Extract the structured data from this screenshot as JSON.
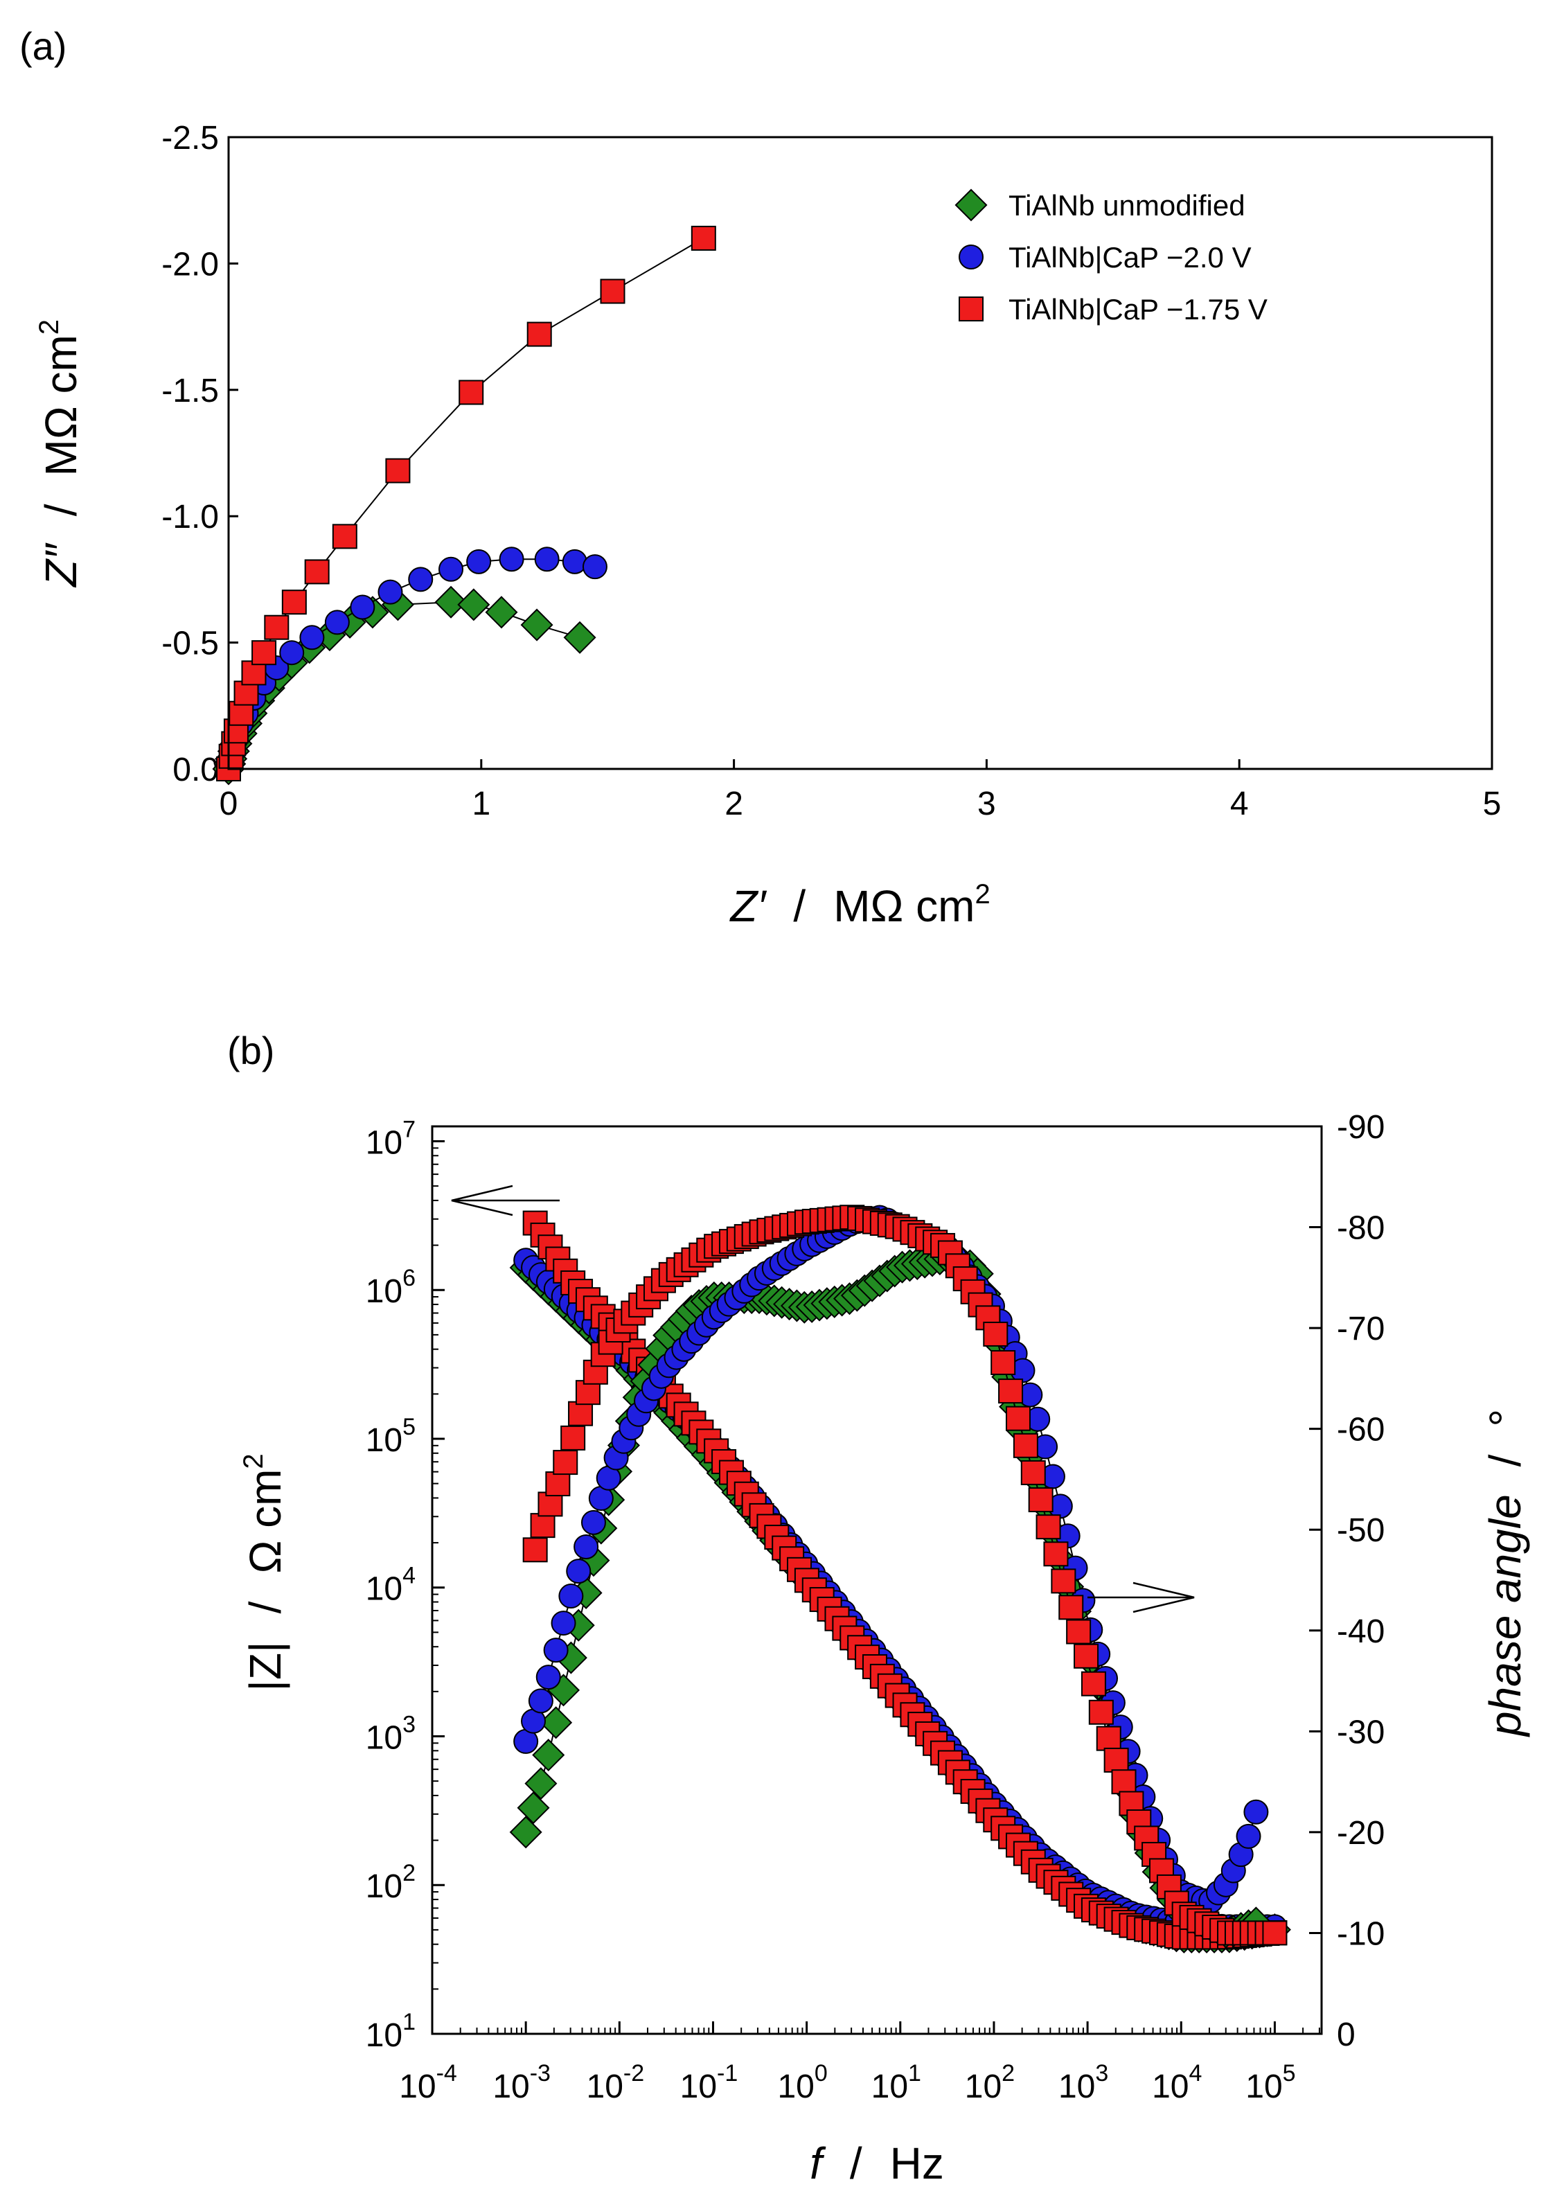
{
  "chart_data": [
    {
      "panel": "(a)",
      "type": "scatter",
      "x_title_sym": "Z′",
      "x_title_unit": "MΩ cm",
      "x_title_sup": "2",
      "y_title_sym": "Z″",
      "y_title_unit": "MΩ cm",
      "y_title_sup": "2",
      "separator": "/",
      "xlim": [
        0,
        5
      ],
      "ylim": [
        0,
        -2.5
      ],
      "x_ticks": [
        "0",
        "1",
        "2",
        "3",
        "4",
        "5"
      ],
      "y_ticks": [
        "0.0",
        "-0.5",
        "-1.0",
        "-1.5",
        "-2.0",
        "-2.5"
      ],
      "legend_position": "top-right",
      "series": [
        {
          "name": "TiAlNb unmodified",
          "marker": "diamond",
          "color": "#228b22",
          "x": [
            0.0,
            0.005,
            0.01,
            0.02,
            0.03,
            0.05,
            0.07,
            0.09,
            0.12,
            0.16,
            0.2,
            0.25,
            0.32,
            0.4,
            0.48,
            0.57,
            0.67,
            0.88,
            0.97,
            1.08,
            1.22,
            1.39
          ],
          "y": [
            0.0,
            -0.02,
            -0.04,
            -0.07,
            -0.1,
            -0.14,
            -0.18,
            -0.22,
            -0.27,
            -0.32,
            -0.37,
            -0.42,
            -0.48,
            -0.53,
            -0.58,
            -0.62,
            -0.65,
            -0.66,
            -0.65,
            -0.62,
            -0.57,
            -0.52
          ]
        },
        {
          "name": "TiAlNb|CaP −2.0 V",
          "marker": "circle",
          "color": "#1f1fe0",
          "x": [
            0.0,
            0.01,
            0.02,
            0.03,
            0.05,
            0.07,
            0.1,
            0.14,
            0.19,
            0.25,
            0.33,
            0.43,
            0.53,
            0.64,
            0.76,
            0.88,
            0.99,
            1.12,
            1.26,
            1.37,
            1.45
          ],
          "y": [
            0.0,
            -0.04,
            -0.08,
            -0.12,
            -0.18,
            -0.22,
            -0.28,
            -0.34,
            -0.4,
            -0.46,
            -0.52,
            -0.58,
            -0.64,
            -0.7,
            -0.75,
            -0.79,
            -0.82,
            -0.83,
            -0.83,
            -0.82,
            -0.8
          ]
        },
        {
          "name": "TiAlNb|CaP −1.75 V",
          "marker": "square",
          "color": "#ee1c1c",
          "x": [
            0.0,
            0.01,
            0.02,
            0.03,
            0.05,
            0.07,
            0.1,
            0.14,
            0.19,
            0.26,
            0.35,
            0.46,
            0.67,
            0.96,
            1.23,
            1.52,
            1.88
          ],
          "y": [
            0.0,
            -0.05,
            -0.1,
            -0.15,
            -0.22,
            -0.3,
            -0.38,
            -0.46,
            -0.56,
            -0.66,
            -0.78,
            -0.92,
            -1.18,
            -1.49,
            -1.72,
            -1.89,
            -2.1
          ]
        }
      ]
    },
    {
      "panel": "(b)",
      "type": "scatter",
      "x_title_sym": "f",
      "x_title_unit": "Hz",
      "separator": "/",
      "y_title_left": "|Z|",
      "y_title_left_unit": "Ω cm",
      "y_title_left_sup": "2",
      "y_title_right": "phase angle",
      "y_title_right_unit": "°",
      "x_scale": "log",
      "xlim": [
        -4,
        5.5
      ],
      "x_ticks_base": "10",
      "x_ticks_exp": [
        "-4",
        "-3",
        "-2",
        "-1",
        "0",
        "1",
        "2",
        "3",
        "4",
        "5"
      ],
      "y_left_scale": "log",
      "y_left_lim": [
        1,
        7.1
      ],
      "y_left_ticks_base": "10",
      "y_left_ticks_exp": [
        "1",
        "2",
        "3",
        "4",
        "5",
        "6",
        "7"
      ],
      "y_right_lim": [
        0,
        -90
      ],
      "y_right_ticks": [
        "0",
        "-10",
        "-20",
        "-30",
        "-40",
        "-50",
        "-60",
        "-70",
        "-80",
        "-90"
      ],
      "arrows": [
        "|Z| series read on left axis",
        "phase series read on right axis"
      ],
      "modulus_series": [
        {
          "name": "TiAlNb unmodified",
          "marker": "diamond",
          "color": "#228b22",
          "log_f_start": -3,
          "log_f_end": 5,
          "points": 100,
          "log_z_knots": [
            [
              -3,
              6.15
            ],
            [
              -2,
              5.55
            ],
            [
              -1,
              4.85
            ],
            [
              0,
              4.05
            ],
            [
              1,
              3.25
            ],
            [
              2,
              2.45
            ],
            [
              2.5,
              2.1
            ],
            [
              3,
              1.85
            ],
            [
              3.5,
              1.73
            ],
            [
              4,
              1.65
            ],
            [
              4.5,
              1.65
            ],
            [
              5,
              1.7
            ]
          ]
        },
        {
          "name": "TiAlNb|CaP −2.0 V",
          "marker": "circle",
          "color": "#1f1fe0",
          "log_f_start": -3,
          "log_f_end": 5,
          "points": 100,
          "log_z_knots": [
            [
              -3,
              6.2
            ],
            [
              -2,
              5.6
            ],
            [
              -1,
              4.95
            ],
            [
              0,
              4.15
            ],
            [
              1,
              3.35
            ],
            [
              2,
              2.55
            ],
            [
              2.5,
              2.2
            ],
            [
              3,
              1.95
            ],
            [
              3.5,
              1.8
            ],
            [
              4,
              1.74
            ],
            [
              4.5,
              1.72
            ],
            [
              5,
              1.72
            ]
          ]
        },
        {
          "name": "TiAlNb|CaP −1.75 V",
          "marker": "square",
          "color": "#ee1c1c",
          "log_f_start": -2.9,
          "log_f_end": 5,
          "points": 99,
          "log_z_knots": [
            [
              -2.9,
              6.45
            ],
            [
              -2.5,
              6.05
            ],
            [
              -2,
              5.7
            ],
            [
              -1,
              4.95
            ],
            [
              0,
              4.05
            ],
            [
              1,
              3.25
            ],
            [
              2,
              2.45
            ],
            [
              2.5,
              2.1
            ],
            [
              3,
              1.85
            ],
            [
              3.5,
              1.72
            ],
            [
              4,
              1.65
            ],
            [
              4.5,
              1.65
            ],
            [
              5,
              1.68
            ]
          ]
        }
      ],
      "phase_series": [
        {
          "name": "TiAlNb unmodified",
          "marker": "diamond",
          "color": "#228b22",
          "log_f_start": -3,
          "log_f_end": 4.8,
          "points": 98,
          "phase_knots": [
            [
              -3,
              -20
            ],
            [
              -2.8,
              -26
            ],
            [
              -2.5,
              -38
            ],
            [
              -2.2,
              -50
            ],
            [
              -2,
              -57
            ],
            [
              -1.8,
              -63
            ],
            [
              -1.5,
              -69
            ],
            [
              -1.2,
              -72
            ],
            [
              -1,
              -73
            ],
            [
              -0.5,
              -73
            ],
            [
              0,
              -72
            ],
            [
              0.5,
              -73
            ],
            [
              1,
              -76
            ],
            [
              1.5,
              -77
            ],
            [
              1.8,
              -76
            ],
            [
              2,
              -71
            ],
            [
              2.2,
              -63
            ],
            [
              2.5,
              -54
            ],
            [
              2.8,
              -44
            ],
            [
              3,
              -38
            ],
            [
              3.2,
              -32
            ],
            [
              3.5,
              -22
            ],
            [
              3.8,
              -15
            ],
            [
              4,
              -12
            ],
            [
              4.5,
              -10
            ],
            [
              4.8,
              -11
            ]
          ]
        },
        {
          "name": "TiAlNb|CaP −2.0 V",
          "marker": "circle",
          "color": "#1f1fe0",
          "log_f_start": -3,
          "log_f_end": 4.8,
          "points": 98,
          "phase_knots": [
            [
              -3,
              -29
            ],
            [
              -2.8,
              -34
            ],
            [
              -2.5,
              -44
            ],
            [
              -2.2,
              -53
            ],
            [
              -2,
              -58
            ],
            [
              -1.7,
              -63
            ],
            [
              -1.5,
              -66
            ],
            [
              -1,
              -71
            ],
            [
              -0.5,
              -75
            ],
            [
              0,
              -78
            ],
            [
              0.5,
              -80.5
            ],
            [
              0.8,
              -81
            ],
            [
              1,
              -80
            ],
            [
              1.5,
              -78
            ],
            [
              2,
              -72
            ],
            [
              2.3,
              -66
            ],
            [
              2.5,
              -60
            ],
            [
              2.8,
              -49
            ],
            [
              3,
              -41
            ],
            [
              3.3,
              -32
            ],
            [
              3.5,
              -26
            ],
            [
              3.8,
              -18
            ],
            [
              4,
              -14
            ],
            [
              4.3,
              -13
            ],
            [
              4.5,
              -15
            ],
            [
              4.7,
              -19
            ],
            [
              4.8,
              -22
            ]
          ]
        },
        {
          "name": "TiAlNb|CaP −1.75 V",
          "marker": "square",
          "color": "#ee1c1c",
          "log_f_start": -2.9,
          "log_f_end": 5,
          "points": 99,
          "phase_knots": [
            [
              -2.9,
              -48
            ],
            [
              -2.8,
              -51
            ],
            [
              -2.6,
              -56
            ],
            [
              -2.4,
              -62
            ],
            [
              -2.2,
              -67
            ],
            [
              -2,
              -70
            ],
            [
              -1.7,
              -73
            ],
            [
              -1.5,
              -75
            ],
            [
              -1,
              -78
            ],
            [
              -0.5,
              -79.5
            ],
            [
              0,
              -80.5
            ],
            [
              0.5,
              -81
            ],
            [
              1,
              -80
            ],
            [
              1.5,
              -78
            ],
            [
              2,
              -70
            ],
            [
              2.2,
              -63
            ],
            [
              2.5,
              -53
            ],
            [
              2.8,
              -43
            ],
            [
              3,
              -37
            ],
            [
              3.2,
              -30
            ],
            [
              3.5,
              -22
            ],
            [
              3.8,
              -16
            ],
            [
              4,
              -12
            ],
            [
              4.5,
              -10
            ],
            [
              5,
              -10
            ]
          ]
        }
      ]
    }
  ]
}
